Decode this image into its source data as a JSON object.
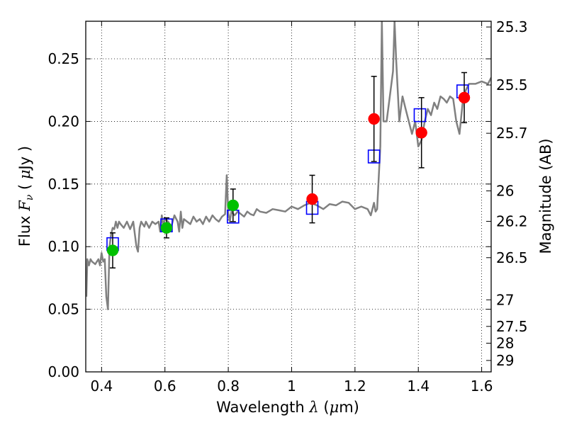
{
  "chart_data": {
    "type": "scatter",
    "title": "",
    "xlabel": {
      "prefix": "Wavelength  ",
      "symbol": "λ",
      "unit_open": " (",
      "mu": "μ",
      "unit_rest": "m)"
    },
    "ylabel": {
      "prefix": "Flux  ",
      "symbol": "F",
      "sub": "ν",
      "unit_open": "  ( ",
      "mu": "μ",
      "unit_rest": "Jy )"
    },
    "y2label": "Magnitude (AB)",
    "xlim": [
      0.35,
      1.63
    ],
    "ylim": [
      0.0,
      0.28
    ],
    "grid": true,
    "x_ticks": [
      0.4,
      0.6,
      0.8,
      1.0,
      1.2,
      1.4,
      1.6
    ],
    "x_tick_labels": [
      "0.4",
      "0.6",
      "0.8",
      "1",
      "1.2",
      "1.4",
      "1.6"
    ],
    "y_ticks": [
      0.0,
      0.05,
      0.1,
      0.15,
      0.2,
      0.25
    ],
    "y_tick_labels": [
      "0.00",
      "0.05",
      "0.10",
      "0.15",
      "0.20",
      "0.25"
    ],
    "y2_ticks": [
      "25.3",
      "25.5",
      "25.7",
      "26",
      "26.2",
      "26.5",
      "27",
      "27.5",
      "28",
      "29"
    ],
    "series": [
      {
        "kind": "model_sed",
        "color": "#808080",
        "x": [
          0.352,
          0.355,
          0.36,
          0.365,
          0.37,
          0.375,
          0.38,
          0.385,
          0.39,
          0.395,
          0.4,
          0.405,
          0.41,
          0.415,
          0.42,
          0.425,
          0.43,
          0.435,
          0.44,
          0.445,
          0.45,
          0.455,
          0.46,
          0.47,
          0.48,
          0.49,
          0.5,
          0.51,
          0.515,
          0.52,
          0.525,
          0.53,
          0.535,
          0.54,
          0.55,
          0.56,
          0.57,
          0.58,
          0.585,
          0.59,
          0.595,
          0.6,
          0.61,
          0.62,
          0.63,
          0.64,
          0.645,
          0.65,
          0.655,
          0.66,
          0.67,
          0.68,
          0.69,
          0.7,
          0.71,
          0.72,
          0.73,
          0.74,
          0.75,
          0.76,
          0.77,
          0.78,
          0.79,
          0.795,
          0.8,
          0.805,
          0.81,
          0.82,
          0.83,
          0.84,
          0.85,
          0.86,
          0.87,
          0.88,
          0.89,
          0.9,
          0.92,
          0.94,
          0.96,
          0.98,
          1.0,
          1.02,
          1.04,
          1.06,
          1.08,
          1.1,
          1.12,
          1.14,
          1.16,
          1.18,
          1.2,
          1.22,
          1.24,
          1.25,
          1.26,
          1.265,
          1.27,
          1.28,
          1.285,
          1.29,
          1.3,
          1.31,
          1.32,
          1.325,
          1.33,
          1.34,
          1.35,
          1.36,
          1.37,
          1.38,
          1.39,
          1.4,
          1.41,
          1.42,
          1.43,
          1.44,
          1.45,
          1.46,
          1.47,
          1.48,
          1.49,
          1.5,
          1.51,
          1.52,
          1.53,
          1.54,
          1.55,
          1.56,
          1.58,
          1.6,
          1.62,
          1.63
        ],
        "y": [
          0.06,
          0.09,
          0.085,
          0.09,
          0.088,
          0.087,
          0.086,
          0.088,
          0.09,
          0.085,
          0.095,
          0.088,
          0.09,
          0.06,
          0.05,
          0.1,
          0.11,
          0.115,
          0.114,
          0.12,
          0.115,
          0.12,
          0.118,
          0.115,
          0.12,
          0.114,
          0.12,
          0.1,
          0.096,
          0.115,
          0.12,
          0.118,
          0.116,
          0.12,
          0.115,
          0.12,
          0.118,
          0.12,
          0.112,
          0.125,
          0.117,
          0.122,
          0.12,
          0.116,
          0.125,
          0.12,
          0.112,
          0.128,
          0.115,
          0.122,
          0.12,
          0.118,
          0.124,
          0.12,
          0.122,
          0.118,
          0.124,
          0.12,
          0.125,
          0.122,
          0.12,
          0.124,
          0.126,
          0.157,
          0.127,
          0.12,
          0.128,
          0.125,
          0.128,
          0.126,
          0.124,
          0.128,
          0.126,
          0.125,
          0.13,
          0.128,
          0.127,
          0.13,
          0.129,
          0.128,
          0.132,
          0.13,
          0.133,
          0.135,
          0.133,
          0.13,
          0.134,
          0.133,
          0.136,
          0.135,
          0.13,
          0.132,
          0.13,
          0.125,
          0.135,
          0.128,
          0.13,
          0.18,
          0.28,
          0.2,
          0.2,
          0.22,
          0.24,
          0.28,
          0.25,
          0.2,
          0.22,
          0.21,
          0.2,
          0.19,
          0.2,
          0.18,
          0.185,
          0.2,
          0.21,
          0.205,
          0.215,
          0.21,
          0.22,
          0.218,
          0.215,
          0.22,
          0.218,
          0.2,
          0.19,
          0.215,
          0.225,
          0.23,
          0.23,
          0.232,
          0.23,
          0.235
        ]
      },
      {
        "kind": "model_band_flux",
        "marker": "square",
        "color": "#0000ff",
        "x": [
          0.435,
          0.605,
          0.815,
          1.065,
          1.26,
          1.405,
          1.54
        ],
        "y": [
          0.102,
          0.117,
          0.124,
          0.131,
          0.172,
          0.205,
          0.224
        ]
      },
      {
        "kind": "observed_optical",
        "marker": "circle",
        "color": "#00c000",
        "x": [
          0.435,
          0.605,
          0.815
        ],
        "y": [
          0.097,
          0.115,
          0.133
        ],
        "yerr": [
          0.014,
          0.008,
          0.013
        ]
      },
      {
        "kind": "observed_nir",
        "marker": "circle",
        "color": "#ff0000",
        "x": [
          1.065,
          1.26,
          1.41,
          1.545
        ],
        "y": [
          0.138,
          0.202,
          0.191,
          0.219
        ],
        "yerr": [
          0.019,
          0.034,
          0.028,
          0.02
        ]
      }
    ]
  }
}
